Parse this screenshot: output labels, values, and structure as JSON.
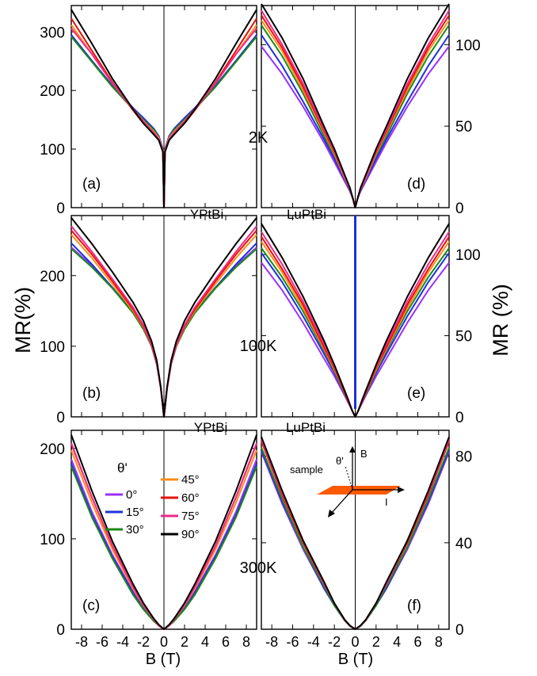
{
  "figure": {
    "y_axis_label_left": "MR(%)",
    "y_axis_label_right": "MR (%)",
    "x_axis_label": "B (T)",
    "temperature_labels": [
      "2K",
      "100K",
      "300K"
    ],
    "material_labels": [
      "YPtBi",
      "LuPtBi",
      "YPtBi",
      "LuPtBi"
    ],
    "panel_labels": [
      "(a)",
      "(b)",
      "(c)",
      "(d)",
      "(e)",
      "(f)"
    ],
    "legend_title": "θ'",
    "legend_items": [
      "0°",
      "15°",
      "30°",
      "45°",
      "60°",
      "75°",
      "90°"
    ],
    "inset": {
      "sample": "sample",
      "field": "B",
      "current": "I",
      "angle": "θ'"
    },
    "colors": {
      "0": "#9b30ff",
      "15": "#1f2fdb",
      "30": "#1a8a1a",
      "45": "#ff8c1a",
      "60": "#e8120c",
      "75": "#ee2a8a",
      "90": "#000000",
      "sample": "#ff5a00"
    }
  },
  "chart_data": [
    {
      "panel": "(a)",
      "material": "YPtBi",
      "temperature": "2K",
      "type": "line",
      "xlim": [
        -9,
        9
      ],
      "ylim": [
        0,
        345
      ],
      "xticks": [
        -8,
        -6,
        -4,
        -2,
        0,
        2,
        4,
        6,
        8
      ],
      "yticks": [
        0,
        100,
        200,
        300
      ],
      "y_axis_side": "left",
      "series": [
        {
          "name": "0°",
          "x": [
            0,
            0.1,
            0.5,
            1,
            2,
            3,
            5,
            7,
            9
          ],
          "y": [
            0,
            100,
            122,
            135,
            153,
            170,
            208,
            250,
            293
          ]
        },
        {
          "name": "15°",
          "x": [
            0,
            0.1,
            0.5,
            1,
            2,
            3,
            5,
            7,
            9
          ],
          "y": [
            0,
            100,
            122,
            135,
            153,
            170,
            208,
            251,
            295
          ]
        },
        {
          "name": "30°",
          "x": [
            0,
            0.1,
            0.5,
            1,
            2,
            3,
            5,
            7,
            9
          ],
          "y": [
            0,
            98,
            120,
            133,
            150,
            168,
            206,
            249,
            292
          ]
        },
        {
          "name": "45°",
          "x": [
            0,
            0.1,
            0.5,
            1,
            2,
            3,
            5,
            7,
            9
          ],
          "y": [
            0,
            98,
            119,
            130,
            148,
            168,
            212,
            262,
            312
          ]
        },
        {
          "name": "60°",
          "x": [
            0,
            0.1,
            0.5,
            1,
            2,
            3,
            5,
            7,
            9
          ],
          "y": [
            0,
            96,
            116,
            126,
            144,
            166,
            214,
            268,
            323
          ]
        },
        {
          "name": "75°",
          "x": [
            0,
            0.1,
            0.5,
            1,
            2,
            3,
            5,
            7,
            9
          ],
          "y": [
            0,
            96,
            117,
            128,
            147,
            168,
            212,
            262,
            306
          ]
        },
        {
          "name": "90°",
          "x": [
            0,
            0.1,
            0.5,
            1,
            2,
            3,
            5,
            7,
            9
          ],
          "y": [
            0,
            95,
            115,
            125,
            144,
            168,
            220,
            280,
            338
          ]
        }
      ]
    },
    {
      "panel": "(b)",
      "material": "YPtBi",
      "temperature": "100K",
      "type": "line",
      "xlim": [
        -9,
        9
      ],
      "ylim": [
        0,
        285
      ],
      "xticks": [
        -8,
        -6,
        -4,
        -2,
        0,
        2,
        4,
        6,
        8
      ],
      "yticks": [
        0,
        100,
        200
      ],
      "y_axis_side": "left",
      "series": [
        {
          "name": "0°",
          "x": [
            0,
            0.3,
            0.7,
            1.2,
            2,
            3,
            5,
            7,
            9
          ],
          "y": [
            0,
            40,
            75,
            100,
            125,
            148,
            183,
            214,
            240
          ]
        },
        {
          "name": "15°",
          "x": [
            0,
            0.3,
            0.7,
            1.2,
            2,
            3,
            5,
            7,
            9
          ],
          "y": [
            0,
            40,
            75,
            100,
            125,
            148,
            183,
            216,
            246
          ]
        },
        {
          "name": "30°",
          "x": [
            0,
            0.3,
            0.7,
            1.2,
            2,
            3,
            5,
            7,
            9
          ],
          "y": [
            0,
            40,
            75,
            100,
            124,
            147,
            182,
            212,
            238
          ]
        },
        {
          "name": "45°",
          "x": [
            0,
            0.3,
            0.7,
            1.2,
            2,
            3,
            5,
            7,
            9
          ],
          "y": [
            0,
            40,
            76,
            101,
            127,
            150,
            188,
            225,
            258
          ]
        },
        {
          "name": "60°",
          "x": [
            0,
            0.3,
            0.7,
            1.2,
            2,
            3,
            5,
            7,
            9
          ],
          "y": [
            0,
            40,
            76,
            102,
            128,
            152,
            192,
            230,
            264
          ]
        },
        {
          "name": "75°",
          "x": [
            0,
            0.3,
            0.7,
            1.2,
            2,
            3,
            5,
            7,
            9
          ],
          "y": [
            0,
            40,
            77,
            103,
            130,
            155,
            195,
            234,
            270
          ]
        },
        {
          "name": "90°",
          "x": [
            0,
            0.3,
            0.7,
            1.2,
            2,
            3,
            5,
            7,
            9
          ],
          "y": [
            0,
            42,
            80,
            107,
            136,
            162,
            205,
            245,
            282
          ]
        }
      ]
    },
    {
      "panel": "(c)",
      "material": "YPtBi",
      "temperature": "300K",
      "type": "line",
      "xlim": [
        -9,
        9
      ],
      "ylim": [
        0,
        220
      ],
      "xticks": [
        -8,
        -6,
        -4,
        -2,
        0,
        2,
        4,
        6,
        8
      ],
      "yticks": [
        0,
        100,
        200
      ],
      "y_axis_side": "left",
      "series": [
        {
          "name": "0°",
          "x": [
            0,
            0.5,
            1,
            2,
            3,
            5,
            7,
            9
          ],
          "y": [
            0,
            4,
            10,
            24,
            42,
            82,
            130,
            188
          ]
        },
        {
          "name": "15°",
          "x": [
            0,
            0.5,
            1,
            2,
            3,
            5,
            7,
            9
          ],
          "y": [
            0,
            4,
            10,
            23,
            40,
            80,
            126,
            183
          ]
        },
        {
          "name": "30°",
          "x": [
            0,
            0.5,
            1,
            2,
            3,
            5,
            7,
            9
          ],
          "y": [
            0,
            4,
            9,
            22,
            38,
            78,
            124,
            180
          ]
        },
        {
          "name": "45°",
          "x": [
            0,
            0.5,
            1,
            2,
            3,
            5,
            7,
            9
          ],
          "y": [
            0,
            4,
            11,
            26,
            45,
            88,
            140,
            198
          ]
        },
        {
          "name": "60°",
          "x": [
            0,
            0.5,
            1,
            2,
            3,
            5,
            7,
            9
          ],
          "y": [
            0,
            4,
            11,
            27,
            47,
            92,
            146,
            205
          ]
        },
        {
          "name": "75°",
          "x": [
            0,
            0.5,
            1,
            2,
            3,
            5,
            7,
            9
          ],
          "y": [
            0,
            4,
            11,
            27,
            47,
            92,
            146,
            206
          ]
        },
        {
          "name": "90°",
          "x": [
            0,
            0.5,
            1,
            2,
            3,
            5,
            7,
            9
          ],
          "y": [
            0,
            5,
            12,
            29,
            50,
            97,
            153,
            215
          ]
        }
      ]
    },
    {
      "panel": "(d)",
      "material": "LuPtBi",
      "temperature": "2K",
      "type": "line",
      "xlim": [
        -9,
        9
      ],
      "ylim": [
        0,
        124
      ],
      "xticks": [
        -8,
        -6,
        -4,
        -2,
        0,
        2,
        4,
        6,
        8
      ],
      "yticks": [
        0,
        50,
        100
      ],
      "y_axis_side": "right",
      "series": [
        {
          "name": "0°",
          "x": [
            0,
            0.2,
            0.5,
            1,
            2,
            3,
            5,
            7,
            9
          ],
          "y": [
            0,
            5,
            10,
            16,
            28,
            40,
            62,
            82,
            99
          ]
        },
        {
          "name": "15°",
          "x": [
            0,
            0.2,
            0.5,
            1,
            2,
            3,
            5,
            7,
            9
          ],
          "y": [
            0,
            5,
            10,
            17,
            30,
            42,
            65,
            87,
            106
          ]
        },
        {
          "name": "30°",
          "x": [
            0,
            0.2,
            0.5,
            1,
            2,
            3,
            5,
            7,
            9
          ],
          "y": [
            0,
            5,
            11,
            18,
            32,
            44,
            70,
            93,
            112
          ]
        },
        {
          "name": "45°",
          "x": [
            0,
            0.2,
            0.5,
            1,
            2,
            3,
            5,
            7,
            9
          ],
          "y": [
            0,
            5,
            11,
            18,
            33,
            46,
            72,
            96,
            115
          ]
        },
        {
          "name": "60°",
          "x": [
            0,
            0.2,
            0.5,
            1,
            2,
            3,
            5,
            7,
            9
          ],
          "y": [
            0,
            5,
            11,
            19,
            34,
            47,
            74,
            98,
            118
          ]
        },
        {
          "name": "75°",
          "x": [
            0,
            0.2,
            0.5,
            1,
            2,
            3,
            5,
            7,
            9
          ],
          "y": [
            0,
            5,
            11,
            19,
            35,
            48,
            76,
            100,
            121
          ]
        },
        {
          "name": "90°",
          "x": [
            0,
            0.2,
            0.5,
            1,
            2,
            3,
            5,
            7,
            9
          ],
          "y": [
            0,
            5,
            12,
            20,
            36,
            50,
            79,
            104,
            125
          ]
        }
      ]
    },
    {
      "panel": "(e)",
      "material": "LuPtBi",
      "temperature": "100K",
      "type": "line",
      "xlim": [
        -9,
        9
      ],
      "ylim": [
        0,
        124
      ],
      "xticks": [
        -8,
        -6,
        -4,
        -2,
        0,
        2,
        4,
        6,
        8
      ],
      "yticks": [
        0,
        50,
        100
      ],
      "y_axis_side": "right",
      "series": [
        {
          "name": "0°",
          "x": [
            0,
            0.3,
            0.7,
            1,
            2,
            3,
            5,
            7,
            9
          ],
          "y": [
            0,
            4,
            9,
            13,
            25,
            36,
            58,
            78,
            95
          ]
        },
        {
          "name": "15°",
          "x": [
            0,
            0.3,
            0.7,
            1,
            2,
            3,
            5,
            7,
            9
          ],
          "y": [
            0,
            4,
            10,
            14,
            27,
            39,
            62,
            83,
            101
          ]
        },
        {
          "name": "30°",
          "x": [
            0,
            0.3,
            0.7,
            1,
            2,
            3,
            5,
            7,
            9
          ],
          "y": [
            0,
            4,
            10,
            14,
            28,
            41,
            65,
            86,
            104
          ]
        },
        {
          "name": "45°",
          "x": [
            0,
            0.3,
            0.7,
            1,
            2,
            3,
            5,
            7,
            9
          ],
          "y": [
            0,
            4,
            10,
            15,
            29,
            42,
            67,
            89,
            108
          ]
        },
        {
          "name": "60°",
          "x": [
            0,
            0.3,
            0.7,
            1,
            2,
            3,
            5,
            7,
            9
          ],
          "y": [
            0,
            4,
            10,
            15,
            30,
            43,
            69,
            91,
            111
          ]
        },
        {
          "name": "75°",
          "x": [
            0,
            0.3,
            0.7,
            1,
            2,
            3,
            5,
            7,
            9
          ],
          "y": [
            0,
            4,
            11,
            16,
            31,
            45,
            71,
            94,
            114
          ]
        },
        {
          "name": "90°",
          "x": [
            0,
            0.3,
            0.7,
            1,
            2,
            3,
            5,
            7,
            9
          ],
          "y": [
            0,
            4,
            11,
            16,
            32,
            47,
            74,
            98,
            119
          ]
        }
      ]
    },
    {
      "panel": "(f)",
      "material": "LuPtBi",
      "temperature": "300K",
      "type": "line",
      "xlim": [
        -9,
        9
      ],
      "ylim": [
        0,
        92
      ],
      "xticks": [
        -8,
        -6,
        -4,
        -2,
        0,
        2,
        4,
        6,
        8
      ],
      "yticks": [
        0,
        40,
        80
      ],
      "y_axis_side": "right",
      "series": [
        {
          "name": "0°",
          "x": [
            0,
            0.5,
            1,
            2,
            3,
            5,
            7,
            9
          ],
          "y": [
            0,
            1.5,
            4,
            11,
            19,
            37,
            58,
            82
          ]
        },
        {
          "name": "15°",
          "x": [
            0,
            0.5,
            1,
            2,
            3,
            5,
            7,
            9
          ],
          "y": [
            0,
            1.5,
            4,
            11,
            19,
            38,
            59,
            83
          ]
        },
        {
          "name": "30°",
          "x": [
            0,
            0.5,
            1,
            2,
            3,
            5,
            7,
            9
          ],
          "y": [
            0,
            1.5,
            4,
            11,
            20,
            38,
            60,
            84
          ]
        },
        {
          "name": "45°",
          "x": [
            0,
            0.5,
            1,
            2,
            3,
            5,
            7,
            9
          ],
          "y": [
            0,
            1.6,
            4.2,
            12,
            21,
            40,
            62,
            87
          ]
        },
        {
          "name": "60°",
          "x": [
            0,
            0.5,
            1,
            2,
            3,
            5,
            7,
            9
          ],
          "y": [
            0,
            1.6,
            4.2,
            12,
            21,
            40,
            62,
            87
          ]
        },
        {
          "name": "75°",
          "x": [
            0,
            0.5,
            1,
            2,
            3,
            5,
            7,
            9
          ],
          "y": [
            0,
            1.6,
            4.3,
            12,
            21,
            41,
            63,
            88
          ]
        },
        {
          "name": "90°",
          "x": [
            0,
            0.5,
            1,
            2,
            3,
            5,
            7,
            9
          ],
          "y": [
            0,
            1.7,
            4.4,
            12,
            22,
            41,
            64,
            89
          ]
        }
      ]
    }
  ]
}
